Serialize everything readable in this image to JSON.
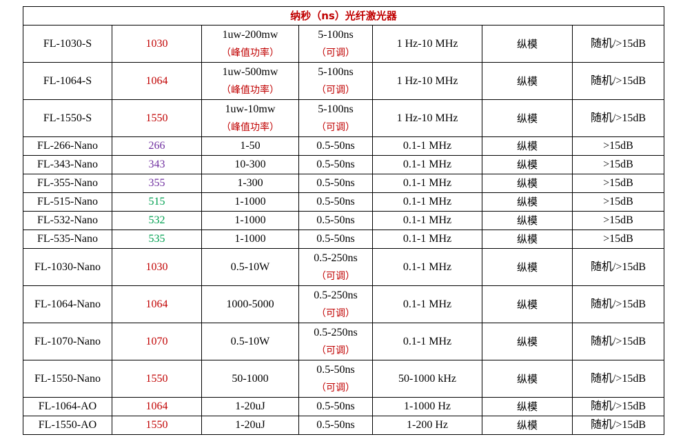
{
  "title": "纳秒（ns）光纤激光器",
  "colors": {
    "red": "#c00000",
    "purple": "#7030a0",
    "green": "#00a050"
  },
  "rows": [
    {
      "model": "FL-1030-S",
      "wavelength": "1030",
      "wl_color": "red",
      "power": "1uw-200mw",
      "power_note": "（峰值功率）",
      "pulse": "5-100ns",
      "pulse_note": "（可调）",
      "rep": "1 Hz-10 MHz",
      "mode": "纵模",
      "extinction": "随机/>15dB"
    },
    {
      "model": "FL-1064-S",
      "wavelength": "1064",
      "wl_color": "red",
      "power": "1uw-500mw",
      "power_note": "（峰值功率）",
      "pulse": "5-100ns",
      "pulse_note": "（可调）",
      "rep": "1 Hz-10 MHz",
      "mode": "纵模",
      "extinction": "随机/>15dB"
    },
    {
      "model": "FL-1550-S",
      "wavelength": "1550",
      "wl_color": "red",
      "power": "1uw-10mw",
      "power_note": "（峰值功率）",
      "pulse": "5-100ns",
      "pulse_note": "（可调）",
      "rep": "1 Hz-10 MHz",
      "mode": "纵模",
      "extinction": "随机/>15dB"
    },
    {
      "model": "FL-266-Nano",
      "wavelength": "266",
      "wl_color": "purple",
      "power": "1-50",
      "power_note": "",
      "pulse": "0.5-50ns",
      "pulse_note": "",
      "rep": "0.1-1 MHz",
      "mode": "纵模",
      "extinction": ">15dB"
    },
    {
      "model": "FL-343-Nano",
      "wavelength": "343",
      "wl_color": "purple",
      "power": "10-300",
      "power_note": "",
      "pulse": "0.5-50ns",
      "pulse_note": "",
      "rep": "0.1-1 MHz",
      "mode": "纵模",
      "extinction": ">15dB"
    },
    {
      "model": "FL-355-Nano",
      "wavelength": "355",
      "wl_color": "purple",
      "power": "1-300",
      "power_note": "",
      "pulse": "0.5-50ns",
      "pulse_note": "",
      "rep": "0.1-1 MHz",
      "mode": "纵模",
      "extinction": ">15dB"
    },
    {
      "model": "FL-515-Nano",
      "wavelength": "515",
      "wl_color": "green",
      "power": "1-1000",
      "power_note": "",
      "pulse": "0.5-50ns",
      "pulse_note": "",
      "rep": "0.1-1 MHz",
      "mode": "纵模",
      "extinction": ">15dB"
    },
    {
      "model": "FL-532-Nano",
      "wavelength": "532",
      "wl_color": "green",
      "power": "1-1000",
      "power_note": "",
      "pulse": "0.5-50ns",
      "pulse_note": "",
      "rep": "0.1-1 MHz",
      "mode": "纵模",
      "extinction": ">15dB"
    },
    {
      "model": "FL-535-Nano",
      "wavelength": "535",
      "wl_color": "green",
      "power": "1-1000",
      "power_note": "",
      "pulse": "0.5-50ns",
      "pulse_note": "",
      "rep": "0.1-1 MHz",
      "mode": "纵模",
      "extinction": ">15dB"
    },
    {
      "model": "FL-1030-Nano",
      "wavelength": "1030",
      "wl_color": "red",
      "power": "0.5-10W",
      "power_note": "",
      "pulse": "0.5-250ns",
      "pulse_note": "（可调）",
      "rep": "0.1-1 MHz",
      "mode": "纵模",
      "extinction": "随机/>15dB"
    },
    {
      "model": "FL-1064-Nano",
      "wavelength": "1064",
      "wl_color": "red",
      "power": "1000-5000",
      "power_note": "",
      "pulse": "0.5-250ns",
      "pulse_note": "（可调）",
      "rep": "0.1-1 MHz",
      "mode": "纵模",
      "extinction": "随机/>15dB"
    },
    {
      "model": "FL-1070-Nano",
      "wavelength": "1070",
      "wl_color": "red",
      "power": "0.5-10W",
      "power_note": "",
      "pulse": "0.5-250ns",
      "pulse_note": "（可调）",
      "rep": "0.1-1 MHz",
      "mode": "纵模",
      "extinction": "随机/>15dB"
    },
    {
      "model": "FL-1550-Nano",
      "wavelength": "1550",
      "wl_color": "red",
      "power": "50-1000",
      "power_note": "",
      "pulse": "0.5-50ns",
      "pulse_note": "（可调）",
      "rep": "50-1000 kHz",
      "mode": "纵模",
      "extinction": "随机/>15dB"
    },
    {
      "model": "FL-1064-AO",
      "wavelength": "1064",
      "wl_color": "red",
      "power": "1-20uJ",
      "power_note": "",
      "pulse": "0.5-50ns",
      "pulse_note": "",
      "rep": "1-1000 Hz",
      "mode": "纵模",
      "extinction": "随机/>15dB"
    },
    {
      "model": "FL-1550-AO",
      "wavelength": "1550",
      "wl_color": "red",
      "power": "1-20uJ",
      "power_note": "",
      "pulse": "0.5-50ns",
      "pulse_note": "",
      "rep": "1-200 Hz",
      "mode": "纵模",
      "extinction": "随机/>15dB"
    }
  ]
}
